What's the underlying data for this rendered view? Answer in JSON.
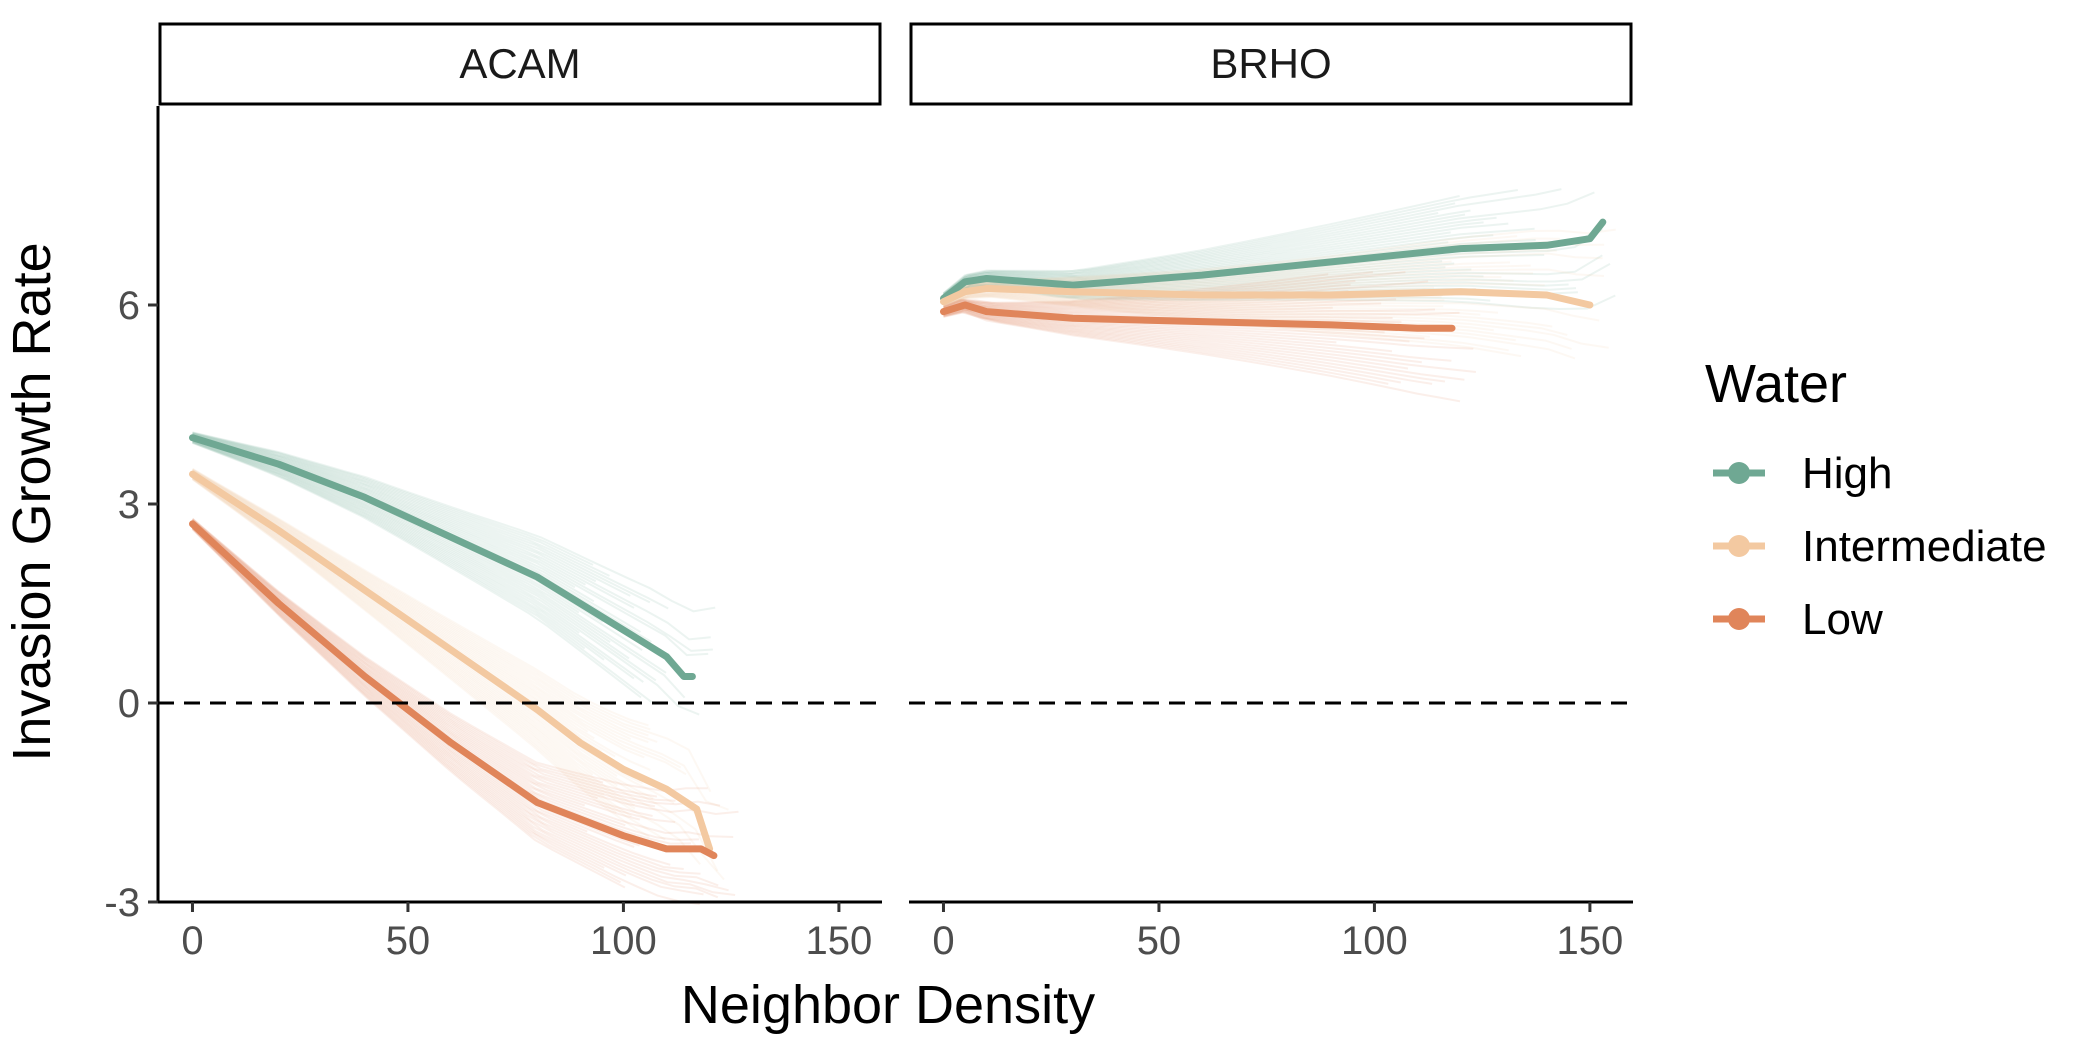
{
  "chart_data": {
    "type": "line",
    "facets": [
      "ACAM",
      "BRHO"
    ],
    "xlabel": "Neighbor Density",
    "ylabel": "Invasion Growth Rate",
    "xlim": [
      -8,
      160
    ],
    "ylim": [
      -3,
      9
    ],
    "xticks": [
      0,
      50,
      100,
      150
    ],
    "yticks": [
      -3,
      0,
      3,
      6
    ],
    "reference_line": {
      "y": 0,
      "style": "dashed"
    },
    "grid": false,
    "legend": {
      "title": "Water",
      "position": "right",
      "entries": [
        "High",
        "Intermediate",
        "Low"
      ]
    },
    "colors": {
      "High": "#6fa893",
      "Intermediate": "#f3c9a1",
      "Low": "#e0855a"
    },
    "panels": [
      {
        "facet": "ACAM",
        "series": [
          {
            "name": "High",
            "x": [
              0,
              20,
              40,
              60,
              80,
              100,
              110,
              114,
              116
            ],
            "y": [
              4.0,
              3.6,
              3.1,
              2.5,
              1.9,
              1.1,
              0.7,
              0.4,
              0.4
            ]
          },
          {
            "name": "Intermediate",
            "x": [
              0,
              20,
              40,
              60,
              80,
              90,
              100,
              110,
              117,
              120
            ],
            "y": [
              3.45,
              2.6,
              1.7,
              0.8,
              -0.1,
              -0.6,
              -1.0,
              -1.3,
              -1.6,
              -2.2
            ]
          },
          {
            "name": "Low",
            "x": [
              0,
              20,
              40,
              60,
              80,
              100,
              110,
              118,
              121
            ],
            "y": [
              2.7,
              1.5,
              0.4,
              -0.6,
              -1.5,
              -2.0,
              -2.2,
              -2.2,
              -2.3
            ]
          }
        ]
      },
      {
        "facet": "BRHO",
        "series": [
          {
            "name": "High",
            "x": [
              0,
              5,
              10,
              30,
              60,
              90,
              120,
              140,
              150,
              153
            ],
            "y": [
              6.1,
              6.35,
              6.4,
              6.3,
              6.45,
              6.65,
              6.85,
              6.9,
              7.0,
              7.25
            ]
          },
          {
            "name": "Intermediate",
            "x": [
              0,
              5,
              10,
              30,
              60,
              90,
              120,
              140,
              150
            ],
            "y": [
              6.05,
              6.2,
              6.25,
              6.2,
              6.15,
              6.15,
              6.2,
              6.15,
              6.0
            ]
          },
          {
            "name": "Low",
            "x": [
              0,
              5,
              10,
              30,
              60,
              90,
              110,
              118
            ],
            "y": [
              5.9,
              6.0,
              5.9,
              5.8,
              5.75,
              5.7,
              5.65,
              5.65
            ]
          }
        ]
      }
    ]
  }
}
